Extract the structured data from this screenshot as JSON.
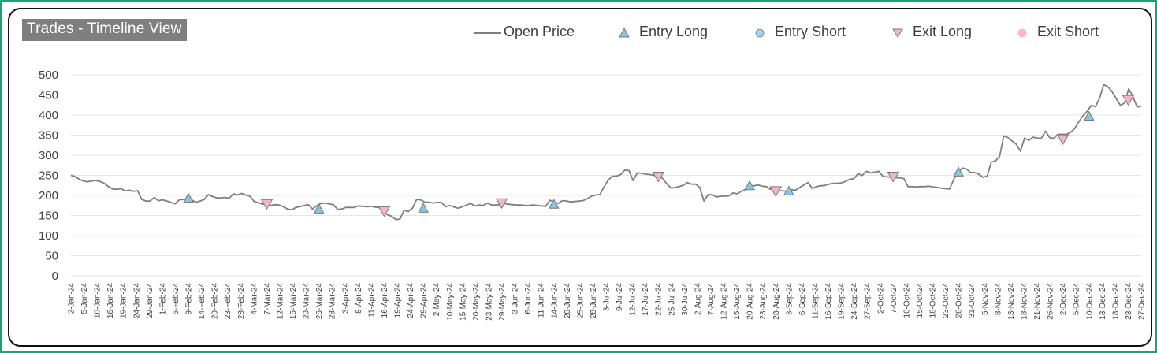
{
  "chart_data": {
    "type": "line",
    "title": "Trades - Timeline View",
    "ylim": [
      0,
      500
    ],
    "y_ticks": [
      0,
      50,
      100,
      150,
      200,
      250,
      300,
      350,
      400,
      450,
      500
    ],
    "grid": true,
    "legend_position": "top-right",
    "x_tick_labels": [
      "2-Jan-24",
      "5-Jan-24",
      "10-Jan-24",
      "16-Jan-24",
      "19-Jan-24",
      "24-Jan-24",
      "29-Jan-24",
      "1-Feb-24",
      "6-Feb-24",
      "9-Feb-24",
      "14-Feb-24",
      "20-Feb-24",
      "23-Feb-24",
      "28-Feb-24",
      "4-Mar-24",
      "7-Mar-24",
      "12-Mar-24",
      "15-Mar-24",
      "20-Mar-24",
      "25-Mar-24",
      "28-Mar-24",
      "3-Apr-24",
      "8-Apr-24",
      "11-Apr-24",
      "16-Apr-24",
      "19-Apr-24",
      "24-Apr-24",
      "29-Apr-24",
      "2-May-24",
      "10-May-24",
      "15-May-24",
      "20-May-24",
      "23-May-24",
      "29-May-24",
      "3-Jun-24",
      "6-Jun-24",
      "11-Jun-24",
      "14-Jun-24",
      "20-Jun-24",
      "25-Jun-24",
      "28-Jun-24",
      "3-Jul-24",
      "9-Jul-24",
      "12-Jul-24",
      "17-Jul-24",
      "22-Jul-24",
      "25-Jul-24",
      "30-Jul-24",
      "2-Aug-24",
      "7-Aug-24",
      "12-Aug-24",
      "15-Aug-24",
      "20-Aug-24",
      "23-Aug-24",
      "28-Aug-24",
      "3-Sep-24",
      "6-Sep-24",
      "11-Sep-24",
      "16-Sep-24",
      "19-Sep-24",
      "24-Sep-24",
      "27-Sep-24",
      "2-Oct-24",
      "7-Oct-24",
      "10-Oct-24",
      "15-Oct-24",
      "18-Oct-24",
      "23-Oct-24",
      "28-Oct-24",
      "31-Oct-24",
      "5-Nov-24",
      "8-Nov-24",
      "13-Nov-24",
      "18-Nov-24",
      "21-Nov-24",
      "26-Nov-24",
      "2-Dec-24",
      "5-Dec-24",
      "10-Dec-24",
      "13-Dec-24",
      "18-Dec-24",
      "23-Dec-24",
      "27-Dec-24"
    ],
    "colors": {
      "open_price": "#7f7f7f",
      "entry_long": "#87c5e3",
      "entry_short": "#9fd4ea",
      "exit_long": "#f4b6c6",
      "exit_short": "#f7b8c8",
      "marker_stroke": "#7a7a7a",
      "grid": "#e6e6e6",
      "axis_text": "#404040"
    },
    "series": [
      {
        "name": "Open Price",
        "kind": "line",
        "values": [
          250,
          247,
          240,
          236,
          234,
          236,
          237,
          235,
          230,
          222,
          216,
          215,
          217,
          211,
          213,
          210,
          212,
          190,
          186,
          186,
          195,
          187,
          189,
          186,
          183,
          179,
          189,
          190,
          192,
          189,
          183,
          186,
          190,
          202,
          197,
          194,
          194,
          195,
          193,
          204,
          201,
          205,
          201,
          198,
          185,
          182,
          178,
          182,
          175,
          177,
          176,
          172,
          166,
          164,
          170,
          172,
          175,
          177,
          166,
          174,
          180,
          181,
          179,
          177,
          165,
          166,
          170,
          170,
          170,
          174,
          173,
          172,
          173,
          171,
          170,
          160,
          152,
          148,
          140,
          141,
          163,
          160,
          168,
          190,
          189,
          183,
          183,
          181,
          183,
          182,
          172,
          175,
          171,
          168,
          172,
          176,
          180,
          174,
          176,
          175,
          181,
          176,
          176,
          177,
          180,
          178,
          177,
          176,
          176,
          175,
          175,
          176,
          175,
          174,
          173,
          188,
          183,
          180,
          187,
          186,
          184,
          185,
          186,
          187,
          192,
          198,
          201,
          202,
          221,
          238,
          248,
          248,
          252,
          263,
          262,
          237,
          256,
          255,
          253,
          252,
          250,
          248,
          243,
          230,
          219,
          219,
          222,
          225,
          232,
          228,
          228,
          220,
          186,
          202,
          202,
          196,
          198,
          198,
          199,
          206,
          204,
          210,
          215,
          219,
          224,
          226,
          223,
          222,
          215,
          218,
          212,
          211,
          211,
          214,
          213,
          220,
          226,
          232,
          217,
          222,
          224,
          225,
          228,
          230,
          230,
          231,
          235,
          240,
          242,
          254,
          250,
          260,
          256,
          258,
          260,
          247,
          246,
          245,
          244,
          244,
          242,
          222,
          222,
          221,
          222,
          222,
          223,
          221,
          220,
          218,
          217,
          216,
          240,
          258,
          268,
          266,
          257,
          257,
          253,
          245,
          248,
          283,
          286,
          297,
          348,
          344,
          335,
          327,
          310,
          343,
          337,
          345,
          343,
          342,
          360,
          344,
          342,
          352,
          352,
          352,
          357,
          366,
          383,
          398,
          409,
          424,
          421,
          442,
          476,
          470,
          458,
          441,
          424,
          430,
          465,
          446,
          420,
          422
        ]
      },
      {
        "name": "Entry Long",
        "kind": "marker",
        "shape": "triangle-up",
        "points": [
          [
            "9-Feb-24",
            193
          ],
          [
            "25-Mar-24",
            166
          ],
          [
            "29-Apr-24",
            168
          ],
          [
            "14-Jun-24",
            178
          ],
          [
            "20-Aug-24",
            224
          ],
          [
            "3-Sep-24",
            211
          ],
          [
            "28-Oct-24",
            258
          ],
          [
            "10-Dec-24",
            397
          ]
        ]
      },
      {
        "name": "Entry Short",
        "kind": "marker",
        "shape": "circle",
        "points": []
      },
      {
        "name": "Exit Long",
        "kind": "marker",
        "shape": "triangle-down",
        "points": [
          [
            "7-Mar-24",
            178
          ],
          [
            "16-Apr-24",
            160
          ],
          [
            "29-May-24",
            180
          ],
          [
            "22-Jul-24",
            246
          ],
          [
            "28-Aug-24",
            210
          ],
          [
            "7-Oct-24",
            246
          ],
          [
            "2-Dec-24",
            339
          ],
          [
            "23-Dec-24",
            437
          ]
        ]
      },
      {
        "name": "Exit Short",
        "kind": "marker",
        "shape": "circle",
        "points": []
      }
    ]
  }
}
